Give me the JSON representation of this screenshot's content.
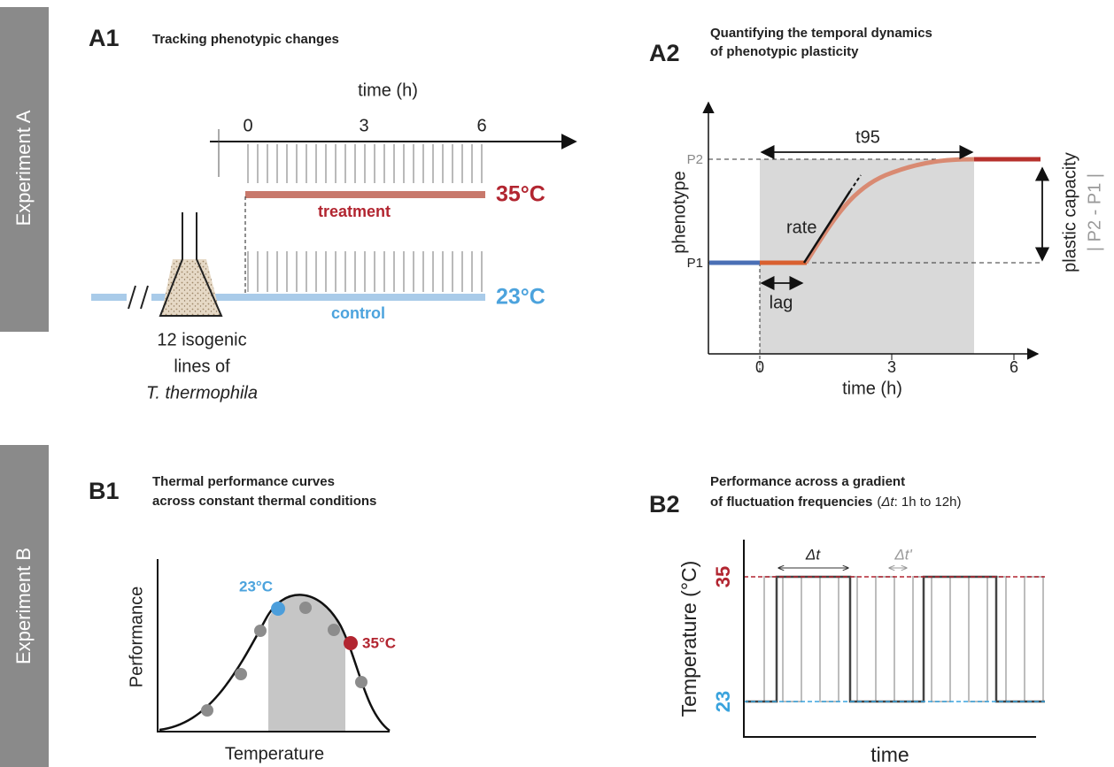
{
  "side_labels": [
    "Experiment A",
    "Experiment B"
  ],
  "a1": {
    "label": "A1",
    "title": "Tracking phenotypic changes",
    "axis_title": "time (h)",
    "ticks": [
      "0",
      "3",
      "6"
    ],
    "treatment_temp": "35°C",
    "treatment": "treatment",
    "control_temp": "23°C",
    "control": "control",
    "sample": [
      "12 isogenic",
      "lines of",
      "T. thermophila"
    ]
  },
  "a2": {
    "label": "A2",
    "title": [
      "Quantifying the temporal dynamics",
      "of phenotypic plasticity"
    ],
    "duration": "t95",
    "levels": [
      "P2",
      "P1"
    ],
    "y_title": "phenotype",
    "rate": "rate",
    "lag": "lag",
    "ticks": [
      "0",
      "3",
      "6"
    ],
    "x_title": "time (h)",
    "capacity": [
      "plastic capacity",
      "| P2 - P1 |"
    ]
  },
  "b1": {
    "label": "B1",
    "title": [
      "Thermal performance curves",
      "across constant thermal conditions"
    ],
    "points": [
      "23°C",
      "35°C"
    ],
    "y_title": "Performance",
    "x_title": "Temperature"
  },
  "b2": {
    "label": "B2",
    "title": [
      "Performance across a gradient",
      "of fluctuation frequencies"
    ],
    "title_note": [
      "(",
      "Δt",
      ": 1h to 12h)"
    ],
    "intervals": [
      "Δt",
      "Δt'"
    ],
    "levels": [
      "35",
      "23"
    ],
    "y_title": "Temperature (°C)",
    "x_title": "time"
  }
}
